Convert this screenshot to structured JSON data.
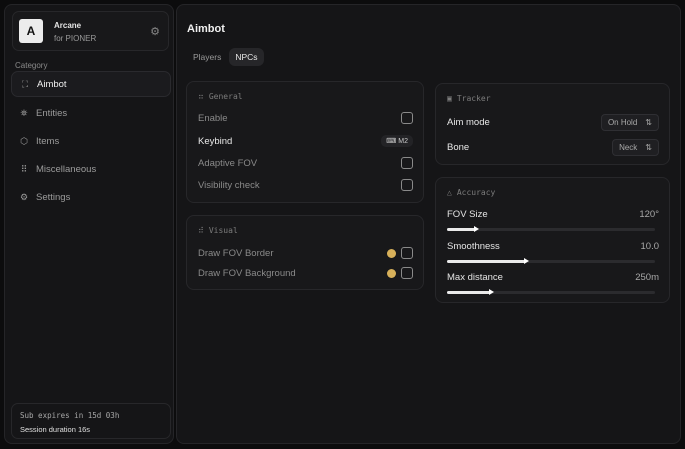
{
  "brand": {
    "logo_letter": "A",
    "name": "Arcane",
    "subtitle": "for PIONER"
  },
  "sidebar": {
    "category_label": "Category",
    "items": [
      {
        "label": "Aimbot",
        "icon": "crosshair-icon",
        "active": true
      },
      {
        "label": "Entities",
        "icon": "entities-icon"
      },
      {
        "label": "Items",
        "icon": "box-icon"
      },
      {
        "label": "Miscellaneous",
        "icon": "grid-icon"
      },
      {
        "label": "Settings",
        "icon": "gear-icon"
      }
    ]
  },
  "subscription": {
    "expires": "Sub expires in 15d 03h",
    "session": "Session duration 16s"
  },
  "main": {
    "title": "Aimbot",
    "tabs": [
      {
        "label": "Players"
      },
      {
        "label": "NPCs",
        "active": true
      }
    ]
  },
  "general": {
    "title": "General",
    "enable": "Enable",
    "keybind": "Keybind",
    "keybind_value": "M2",
    "adaptive_fov": "Adaptive FOV",
    "visibility_check": "Visibility check"
  },
  "visual": {
    "title": "Visual",
    "draw_border": "Draw FOV Border",
    "draw_background": "Draw FOV Background",
    "color": "#d7b05a"
  },
  "tracker": {
    "title": "Tracker",
    "aim_mode": "Aim mode",
    "aim_mode_value": "On Hold",
    "bone": "Bone",
    "bone_value": "Neck"
  },
  "accuracy": {
    "title": "Accuracy",
    "fov_size": "FOV Size",
    "fov_size_value": "120°",
    "fov_fill": 0.14,
    "smoothness": "Smoothness",
    "smoothness_value": "10.0",
    "smoothness_fill": 0.38,
    "max_distance": "Max distance",
    "max_distance_value": "250m",
    "max_distance_fill": 0.21
  }
}
